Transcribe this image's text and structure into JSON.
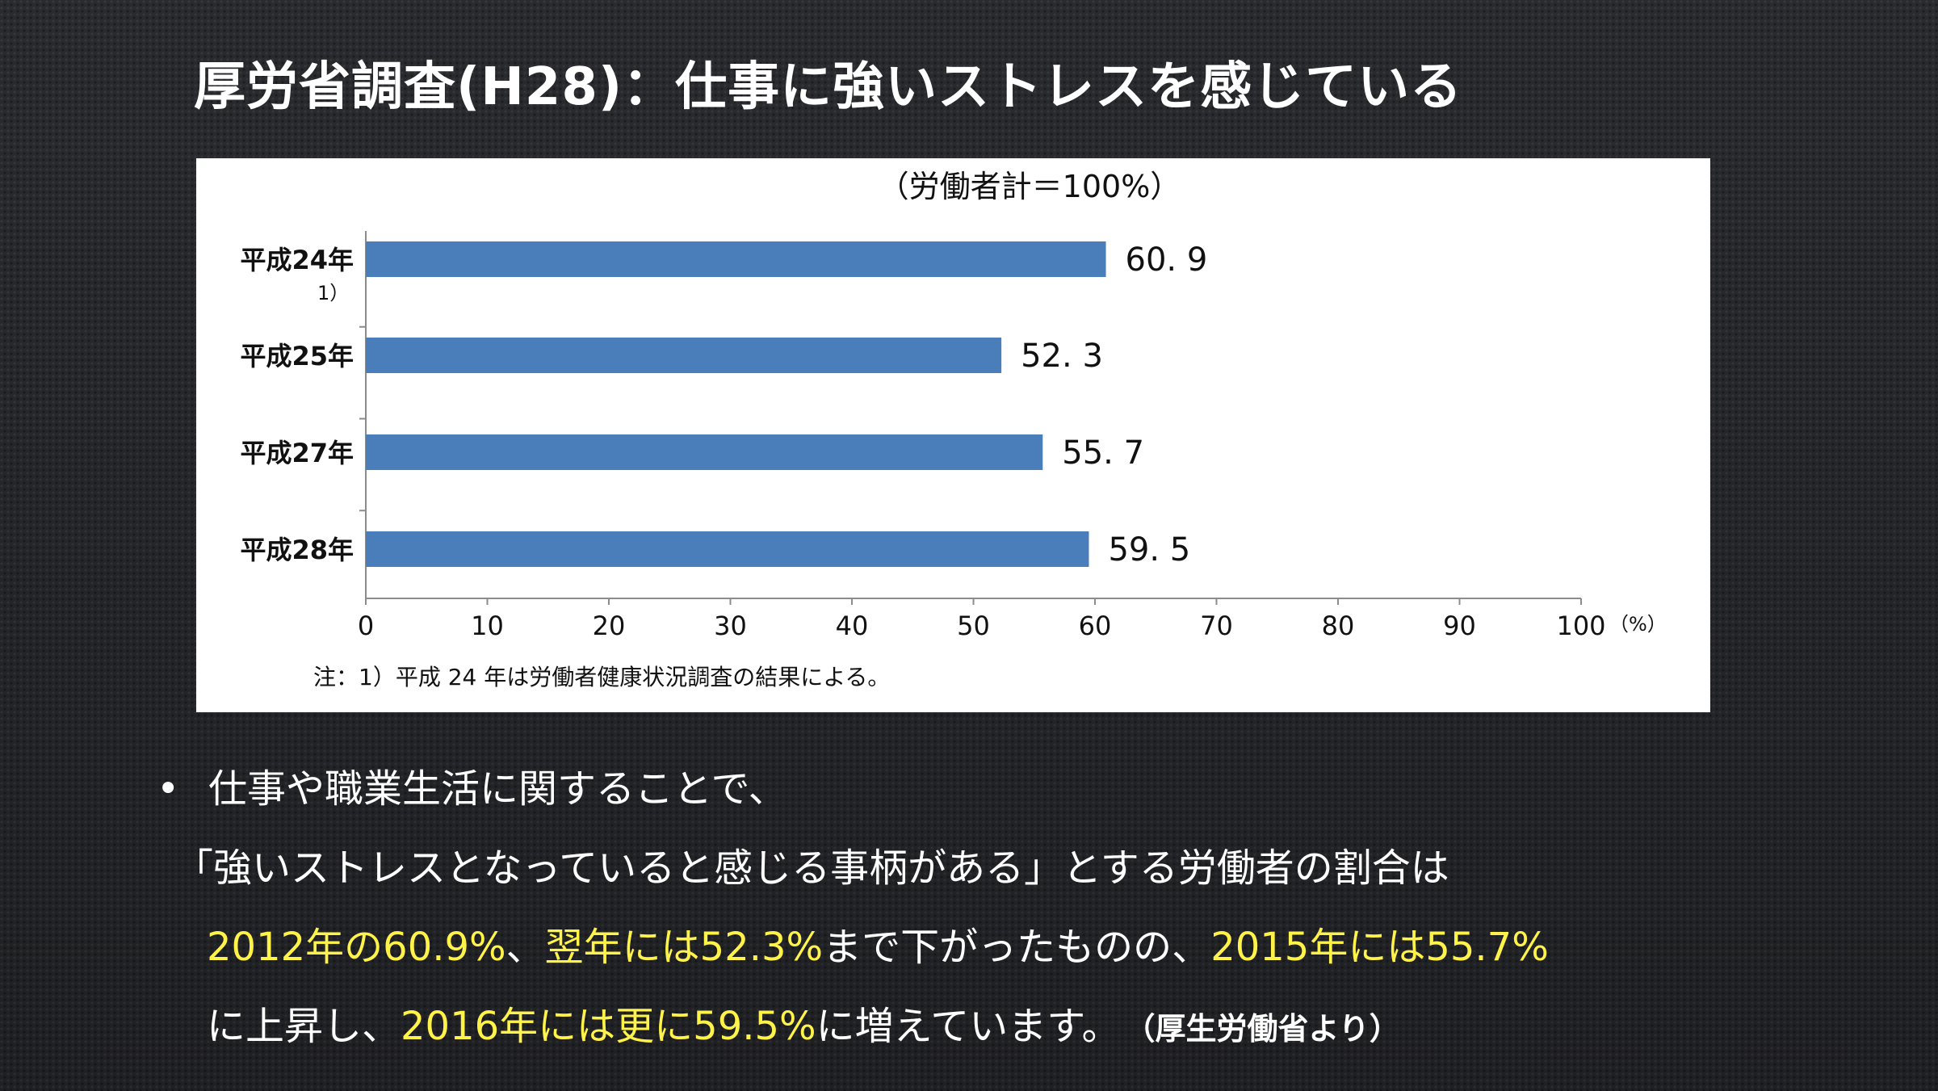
{
  "slide": {
    "title": "厚労省調査(H28)：仕事に強いストレスを感じている"
  },
  "chart_data": {
    "type": "bar",
    "orientation": "horizontal",
    "title": "（労働者計＝100%）",
    "categories": [
      "平成24年",
      "平成25年",
      "平成27年",
      "平成28年"
    ],
    "category_footnotes": [
      "1）",
      "",
      "",
      ""
    ],
    "values": [
      60.9,
      52.3,
      55.7,
      59.5
    ],
    "value_labels": [
      "60. 9",
      "52. 3",
      "55. 7",
      "59. 5"
    ],
    "x_ticks": [
      0,
      10,
      20,
      30,
      40,
      50,
      60,
      70,
      80,
      90,
      100
    ],
    "x_unit": "（%）",
    "xlim": [
      0,
      100
    ],
    "bar_color": "#4a7ebb",
    "grid": false,
    "note": "注：1）平成 24 年は労働者健康状況調査の結果による。"
  },
  "body": {
    "bullet": "•",
    "line1": "仕事や職業生活に関することで、",
    "line2": "「強いストレスとなっていると感じる事柄がある」とする労働者の割合は",
    "line3_hl1": "2012年の60.9%",
    "line3_t1": "、",
    "line3_hl2": "翌年には52.3%",
    "line3_t2": "まで下がったものの、",
    "line3_hl3": "2015年には55.7%",
    "line4_t1": "に上昇し、",
    "line4_hl1": "2016年には更に59.5%",
    "line4_t2": "に増えています。",
    "source": "（厚生労働省より）",
    "highlight_color": "#fff34a"
  }
}
